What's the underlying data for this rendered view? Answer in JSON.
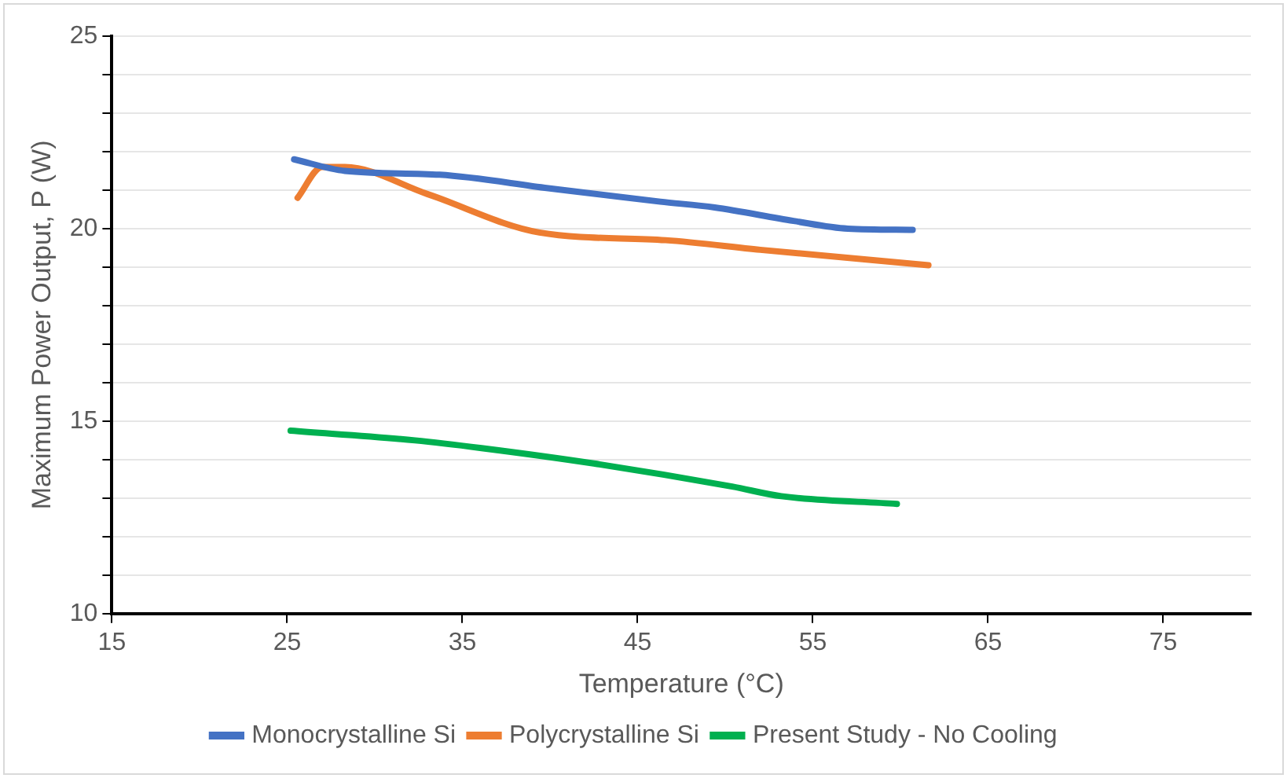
{
  "chart_data": {
    "type": "line",
    "xlabel": "Temperature (°C)",
    "ylabel": "Maximum Power Output, P (W)",
    "xlim": [
      15,
      80
    ],
    "xticks": [
      15,
      25,
      35,
      45,
      55,
      65,
      75
    ],
    "ylim": [
      10,
      25
    ],
    "yticks": [
      10,
      {
        "value": 11,
        "label": null
      },
      {
        "value": 12,
        "label": null
      },
      {
        "value": 13,
        "label": null
      },
      {
        "value": 14,
        "label": null
      },
      15,
      {
        "value": 16,
        "label": null
      },
      {
        "value": 17,
        "label": null
      },
      {
        "value": 18,
        "label": null
      },
      {
        "value": 19,
        "label": null
      },
      20,
      {
        "value": 21,
        "label": null
      },
      {
        "value": 22,
        "label": null
      },
      {
        "value": 23,
        "label": null
      },
      {
        "value": 24,
        "label": null
      },
      25
    ],
    "grid": "y",
    "legend": "bottom",
    "marker": "none",
    "line_style": "solid",
    "series": [
      {
        "name": "Monocrystalline Si",
        "color": "#4472c4",
        "x": [
          25.4,
          28.3,
          33.7,
          39.9,
          46.3,
          49.4,
          53.9,
          57,
          60.7
        ],
        "values": [
          21.8,
          21.5,
          21.4,
          21.05,
          20.7,
          20.55,
          20.2,
          20.0,
          19.97
        ]
      },
      {
        "name": "Polycrystalline Si",
        "color": "#ed7d31",
        "x": [
          25.6,
          27,
          28.3,
          33,
          39.4,
          46.6,
          52,
          61.6
        ],
        "values": [
          20.8,
          21.6,
          21.6,
          20.9,
          19.9,
          19.7,
          19.45,
          19.05
        ]
      },
      {
        "name": "Present Study - No Cooling",
        "color": "#00b050",
        "x": [
          25.2,
          32.3,
          36.1,
          42.5,
          50.4,
          53.2,
          59.8
        ],
        "values": [
          14.75,
          14.5,
          14.3,
          13.9,
          13.3,
          13.05,
          12.85
        ]
      }
    ]
  }
}
